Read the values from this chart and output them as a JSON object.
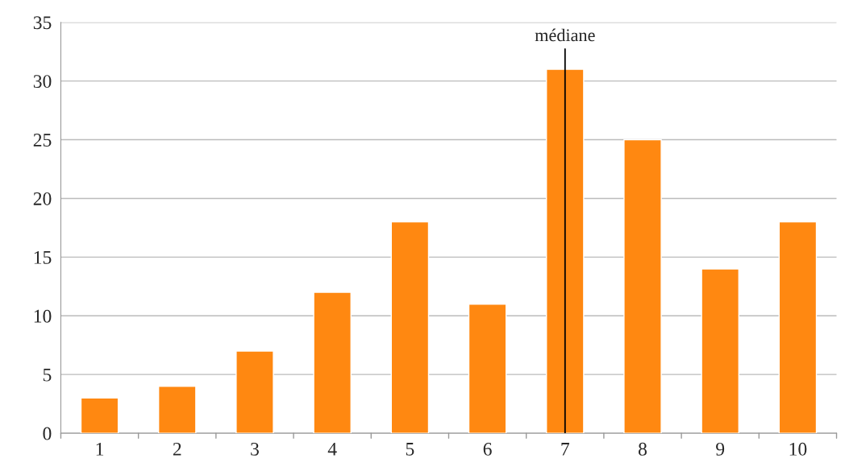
{
  "chart_data": {
    "type": "bar",
    "categories": [
      "1",
      "2",
      "3",
      "4",
      "5",
      "6",
      "7",
      "8",
      "9",
      "10"
    ],
    "values": [
      3,
      4,
      7,
      12,
      18,
      11,
      31,
      25,
      14,
      18
    ],
    "color": "#ff8811",
    "ylim": [
      0,
      35
    ],
    "yticks": [
      0,
      5,
      10,
      15,
      20,
      25,
      30,
      35
    ],
    "grid": "y",
    "ref_lines": [
      {
        "axis": "x",
        "value": "7",
        "label": "médiane",
        "color": "#000000"
      }
    ]
  }
}
